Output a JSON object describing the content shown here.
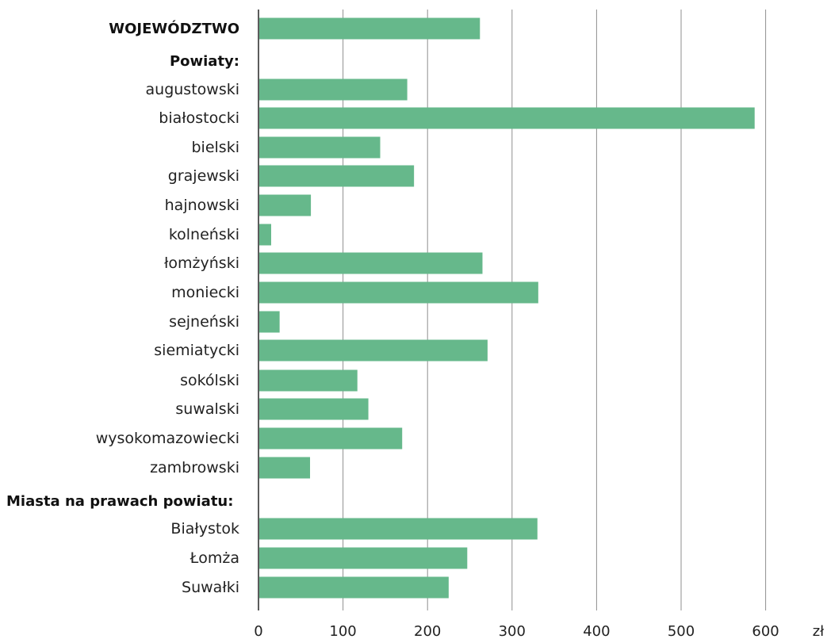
{
  "chart_data": {
    "type": "bar",
    "orientation": "horizontal",
    "x_unit": "zł",
    "xlim": [
      0,
      650
    ],
    "x_ticks": [
      0,
      100,
      200,
      300,
      400,
      500,
      600
    ],
    "grid": true,
    "bar_color": "#66b88b",
    "rows": [
      {
        "label": "WOJEWÓDZTWO",
        "value": 262,
        "style": "bold"
      },
      {
        "label": "Powiaty:",
        "value": null,
        "style": "header"
      },
      {
        "label": "augustowski",
        "value": 176
      },
      {
        "label": "białostocki",
        "value": 587
      },
      {
        "label": "bielski",
        "value": 144
      },
      {
        "label": "grajewski",
        "value": 184
      },
      {
        "label": "hajnowski",
        "value": 62
      },
      {
        "label": "kolneński",
        "value": 15
      },
      {
        "label": "łomżyński",
        "value": 265
      },
      {
        "label": "moniecki",
        "value": 331
      },
      {
        "label": "sejneński",
        "value": 25
      },
      {
        "label": "siemiatycki",
        "value": 271
      },
      {
        "label": "sokólski",
        "value": 117
      },
      {
        "label": "suwalski",
        "value": 130
      },
      {
        "label": "wysokomazowiecki",
        "value": 170
      },
      {
        "label": "zambrowski",
        "value": 61
      },
      {
        "label": "Miasta na prawach powiatu:",
        "value": null,
        "style": "header-left"
      },
      {
        "label": "Białystok",
        "value": 330
      },
      {
        "label": "Łomża",
        "value": 247
      },
      {
        "label": "Suwałki",
        "value": 225
      }
    ]
  }
}
